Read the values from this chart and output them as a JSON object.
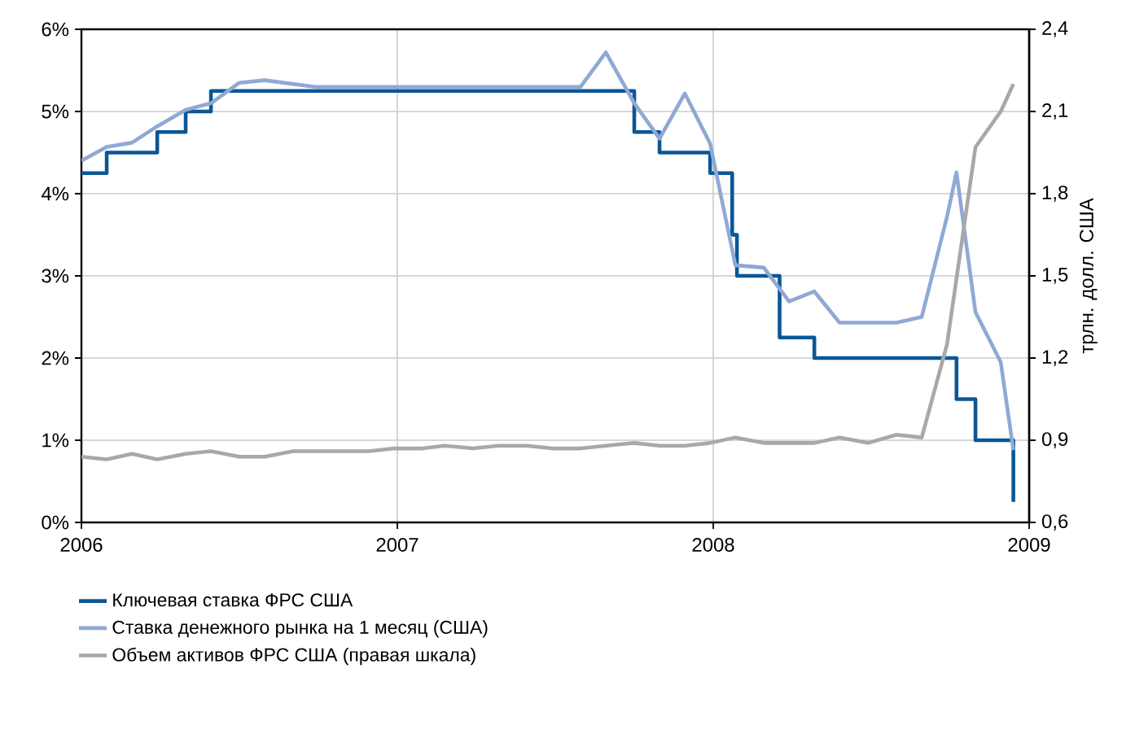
{
  "chart_data": {
    "type": "line",
    "y2label": "трлн. долл. США",
    "xlim": [
      2006,
      2009
    ],
    "xticks": [
      2006,
      2007,
      2008,
      2009
    ],
    "ylim": [
      0,
      6
    ],
    "yticks": [
      {
        "value": 0,
        "label": "0%"
      },
      {
        "value": 1,
        "label": "1%"
      },
      {
        "value": 2,
        "label": "2%"
      },
      {
        "value": 3,
        "label": "3%"
      },
      {
        "value": 4,
        "label": "4%"
      },
      {
        "value": 5,
        "label": "5%"
      },
      {
        "value": 6,
        "label": "6%"
      }
    ],
    "y2lim": [
      0.6,
      2.4
    ],
    "y2ticks": [
      {
        "value": 0.6,
        "label": "0,6"
      },
      {
        "value": 0.9,
        "label": "0,9"
      },
      {
        "value": 1.2,
        "label": "1,2"
      },
      {
        "value": 1.5,
        "label": "1,5"
      },
      {
        "value": 1.8,
        "label": "1,8"
      },
      {
        "value": 2.1,
        "label": "2,1"
      },
      {
        "value": 2.4,
        "label": "2,4"
      }
    ],
    "grid": true,
    "legend": "bottom",
    "series": [
      {
        "name": "Ключевая ставка ФРС США",
        "type": "step",
        "color": "#0a5796",
        "x": [
          2006.0,
          2006.08,
          2006.24,
          2006.33,
          2006.41,
          2007.75,
          2007.83,
          2007.99,
          2008.06,
          2008.075,
          2008.21,
          2008.32,
          2008.77,
          2008.83,
          2008.95
        ],
        "values": [
          4.25,
          4.5,
          4.75,
          5.0,
          5.25,
          4.75,
          4.5,
          4.25,
          3.5,
          3.0,
          2.25,
          2.0,
          1.5,
          1.0,
          0.25
        ]
      },
      {
        "name": "Ставка денежного рынка на 1 месяц (США)",
        "type": "line",
        "color": "#8fa9d4",
        "x": [
          2006.0,
          2006.08,
          2006.16,
          2006.24,
          2006.33,
          2006.41,
          2006.5,
          2006.58,
          2006.74,
          2007.58,
          2007.66,
          2007.75,
          2007.83,
          2007.91,
          2007.99,
          2008.07,
          2008.16,
          2008.24,
          2008.32,
          2008.4,
          2008.58,
          2008.66,
          2008.74,
          2008.77,
          2008.83,
          2008.91,
          2008.95
        ],
        "values": [
          4.4,
          4.57,
          4.62,
          4.82,
          5.02,
          5.1,
          5.35,
          5.38,
          5.3,
          5.3,
          5.72,
          5.1,
          4.67,
          5.22,
          4.61,
          3.13,
          3.1,
          2.69,
          2.81,
          2.43,
          2.43,
          2.5,
          3.72,
          4.26,
          2.56,
          1.95,
          0.88
        ]
      },
      {
        "name": "Объем активов ФРС США (правая шкала)",
        "type": "line",
        "axis": "y2",
        "color": "#a8a8a8",
        "x": [
          2006.0,
          2006.08,
          2006.16,
          2006.24,
          2006.33,
          2006.41,
          2006.5,
          2006.58,
          2006.67,
          2006.91,
          2006.99,
          2007.08,
          2007.15,
          2007.24,
          2007.32,
          2007.41,
          2007.49,
          2007.58,
          2007.66,
          2007.75,
          2007.83,
          2007.91,
          2007.99,
          2008.07,
          2008.16,
          2008.24,
          2008.32,
          2008.4,
          2008.49,
          2008.58,
          2008.66,
          2008.74,
          2008.83,
          2008.91,
          2008.95
        ],
        "values": [
          0.84,
          0.83,
          0.85,
          0.83,
          0.85,
          0.86,
          0.84,
          0.84,
          0.86,
          0.86,
          0.87,
          0.87,
          0.88,
          0.87,
          0.88,
          0.88,
          0.87,
          0.87,
          0.88,
          0.89,
          0.88,
          0.88,
          0.89,
          0.91,
          0.89,
          0.89,
          0.89,
          0.91,
          0.89,
          0.92,
          0.91,
          1.25,
          1.97,
          2.1,
          2.2
        ]
      }
    ]
  }
}
